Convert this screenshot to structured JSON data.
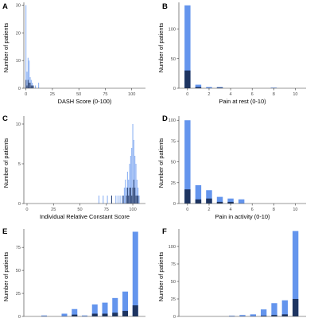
{
  "colors": {
    "light": "#6495ed",
    "dark": "#1d3461",
    "axis": "#333333",
    "tick_label": "#4d4d4d"
  },
  "chart_data": [
    {
      "type": "bar",
      "panel": "A",
      "stacked": true,
      "thin": true,
      "xlabel": "DASH Score (0-100)",
      "ylabel": "Number of patients",
      "xlim": [
        -2,
        113
      ],
      "ylim": [
        0,
        31
      ],
      "xticks": [
        0,
        25,
        50,
        75,
        100
      ],
      "yticks": [
        0,
        10,
        20,
        30
      ],
      "bar_width": 0.8,
      "x": [
        0,
        1,
        2,
        3,
        4,
        5,
        6,
        7,
        9,
        12
      ],
      "total": [
        30,
        6,
        11,
        10,
        4,
        3,
        2,
        1,
        1,
        2
      ],
      "dark": [
        3,
        1,
        3,
        2,
        2,
        1,
        1,
        1,
        0,
        0
      ]
    },
    {
      "type": "bar",
      "panel": "B",
      "stacked": true,
      "xlabel": "Pain at rest (0-10)",
      "ylabel": "Number of patients",
      "xlim": [
        -0.8,
        11
      ],
      "ylim": [
        0,
        145
      ],
      "xticks": [
        0,
        2,
        4,
        6,
        8,
        10
      ],
      "yticks": [
        0,
        50,
        100
      ],
      "bar_width": 0.55,
      "x": [
        0,
        1,
        2,
        3,
        8
      ],
      "total": [
        140,
        6,
        2,
        2,
        1
      ],
      "dark": [
        30,
        2,
        0,
        1,
        0
      ]
    },
    {
      "type": "bar",
      "panel": "C",
      "stacked": true,
      "thin": true,
      "xlabel": "Individual Relative Constant Score",
      "ylabel": "Number of patients",
      "xlim": [
        -3,
        112
      ],
      "ylim": [
        0,
        11
      ],
      "xticks": [
        0,
        25,
        50,
        75,
        100
      ],
      "yticks": [
        0,
        5,
        10
      ],
      "bar_width": 0.8,
      "x": [
        68,
        72,
        76,
        80,
        84,
        86,
        88,
        90,
        91,
        92,
        93,
        94,
        95,
        96,
        97,
        98,
        99,
        100,
        101,
        102,
        103,
        104,
        105,
        106
      ],
      "total": [
        1,
        1,
        1,
        1,
        1,
        1,
        1,
        1,
        1,
        2,
        3,
        2,
        4,
        3,
        5,
        6,
        7,
        10,
        8,
        6,
        5,
        3,
        2,
        1
      ],
      "dark": [
        0,
        0,
        0,
        1,
        0,
        0,
        0,
        0,
        1,
        0,
        0,
        1,
        2,
        1,
        2,
        2,
        1,
        2,
        3,
        2,
        1,
        1,
        1,
        0
      ]
    },
    {
      "type": "bar",
      "panel": "D",
      "stacked": true,
      "xlabel": "Pain in activity (0-10)",
      "ylabel": "Number of patients",
      "xlim": [
        -0.8,
        11
      ],
      "ylim": [
        0,
        105
      ],
      "xticks": [
        0,
        2,
        4,
        6,
        8,
        10
      ],
      "yticks": [
        0,
        25,
        50,
        75,
        100
      ],
      "bar_width": 0.55,
      "x": [
        0,
        1,
        2,
        3,
        4,
        5
      ],
      "total": [
        100,
        22,
        16,
        8,
        6,
        5
      ],
      "dark": [
        17,
        5,
        6,
        2,
        2,
        0
      ]
    },
    {
      "type": "bar",
      "panel": "E",
      "stacked": true,
      "xlabel": "",
      "ylabel": "Number of patients",
      "xlim": [
        0,
        12
      ],
      "ylim": [
        0,
        95
      ],
      "xticks": [],
      "yticks": [
        0,
        25,
        50,
        75
      ],
      "bar_width": 0.55,
      "x": [
        2,
        4,
        5,
        6,
        7,
        8,
        9,
        10,
        11
      ],
      "total": [
        1,
        3,
        8,
        1,
        13,
        15,
        20,
        27,
        92
      ],
      "dark": [
        0,
        0,
        2,
        0,
        3,
        3,
        4,
        6,
        12
      ]
    },
    {
      "type": "bar",
      "panel": "F",
      "stacked": true,
      "xlabel": "",
      "ylabel": "Number of patients",
      "xlim": [
        0,
        12
      ],
      "ylim": [
        0,
        125
      ],
      "xticks": [],
      "yticks": [
        0,
        25,
        50,
        75,
        100
      ],
      "bar_width": 0.55,
      "x": [
        5,
        6,
        7,
        8,
        9,
        10,
        11
      ],
      "total": [
        1,
        2,
        3,
        10,
        19,
        23,
        122
      ],
      "dark": [
        0,
        0,
        0,
        1,
        2,
        3,
        25
      ]
    }
  ]
}
